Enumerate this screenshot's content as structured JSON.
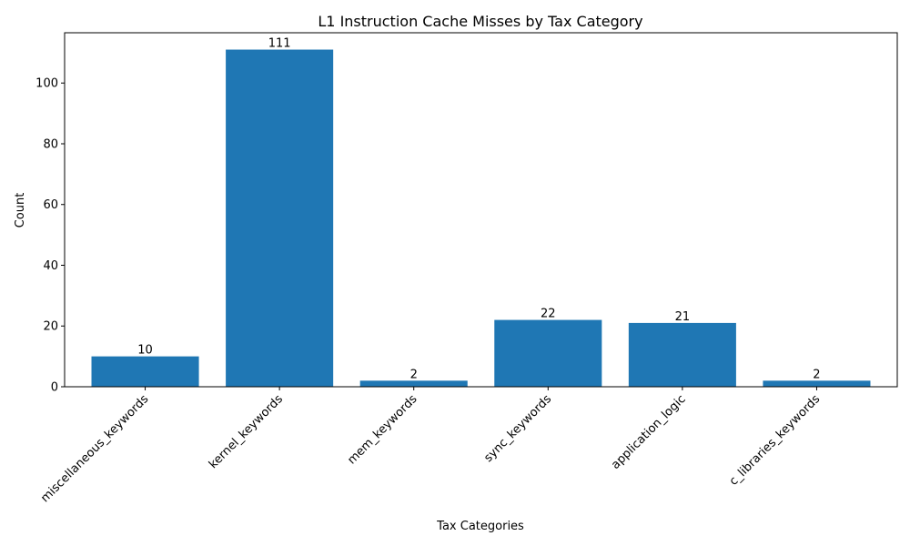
{
  "chart_data": {
    "type": "bar",
    "title": "L1 Instruction Cache Misses by Tax Category",
    "xlabel": "Tax Categories",
    "ylabel": "Count",
    "categories": [
      "miscellaneous_keywords",
      "kernel_keywords",
      "mem_keywords",
      "sync_keywords",
      "application_logic",
      "c_libraries_keywords"
    ],
    "values": [
      10,
      111,
      2,
      22,
      21,
      2
    ],
    "data_labels": [
      "10",
      "111",
      "2",
      "22",
      "21",
      "2"
    ],
    "ylim": [
      0,
      116.55
    ],
    "yticks": [
      0,
      20,
      40,
      60,
      80,
      100
    ],
    "ytick_labels": [
      "0",
      "20",
      "40",
      "60",
      "80",
      "100"
    ],
    "xtick_rotation": 45,
    "grid": false,
    "bar_color": "#1f77b4"
  }
}
